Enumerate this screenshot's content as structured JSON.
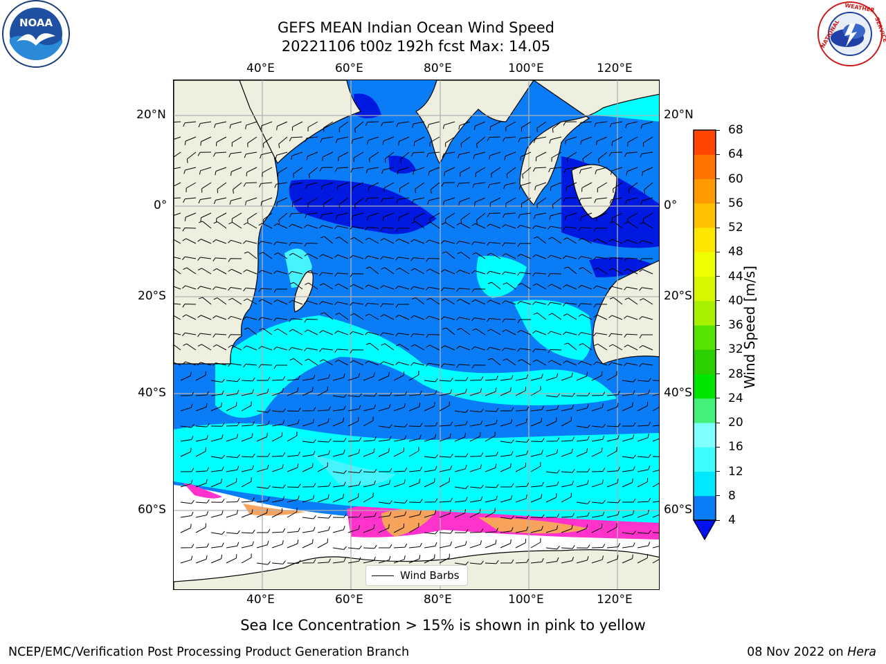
{
  "header": {
    "title_line1": "GEFS MEAN Indian Ocean Wind Speed",
    "title_line2": "20221106 t00z 192h fcst   Max: 14.05"
  },
  "logos": {
    "left": {
      "icon": "noaa-logo-icon",
      "text": "NOAA",
      "ring_text": "NATIONAL OCEANIC AND ATMOSPHERIC ADMINISTRATION • U.S. DEPARTMENT OF COMMERCE"
    },
    "right": {
      "icon": "nws-logo-icon",
      "ring_text": "NATIONAL WEATHER SERVICE"
    }
  },
  "map": {
    "lon_labels": [
      "40°E",
      "60°E",
      "80°E",
      "100°E",
      "120°E"
    ],
    "lat_labels": [
      "20°N",
      "0°",
      "20°S",
      "40°S",
      "60°S"
    ],
    "legend_label": "Wind Barbs",
    "colors": {
      "land": "#efefdf",
      "ocean_4_8": "#0a7cf5",
      "ocean_lt4": "#0019e0",
      "ocean_8_12": "#00ffff",
      "ocean_12_16": "#45f4ff",
      "ice_white": "#ffffff",
      "ice_pink": "#ff33cc",
      "ice_orange": "#f7a35c"
    }
  },
  "colorbar": {
    "label": "Wind Speed [m/s]",
    "ticks": [
      "4",
      "8",
      "12",
      "16",
      "20",
      "24",
      "28",
      "32",
      "36",
      "40",
      "44",
      "48",
      "52",
      "56",
      "60",
      "64",
      "68"
    ],
    "colors": [
      "#0a7cf5",
      "#00e8ff",
      "#3ffcff",
      "#80ffff",
      "#44f07a",
      "#00e500",
      "#2ccf00",
      "#55e300",
      "#a8f000",
      "#d7f700",
      "#eeff00",
      "#ffe600",
      "#ffc200",
      "#ff9a00",
      "#ff7300",
      "#ff4500",
      "#ff0f00"
    ],
    "under_color": "#0011f0"
  },
  "chart_data": {
    "type": "heatmap",
    "title": "GEFS MEAN Indian Ocean Wind Speed",
    "subtitle": "20221106 t00z 192h fcst   Max: 14.05",
    "value_label": "Wind Speed [m/s]",
    "max_value": 14.05,
    "color_scale": [
      4,
      8,
      12,
      16,
      20,
      24,
      28,
      32,
      36,
      40,
      44,
      48,
      52,
      56,
      60,
      64,
      68
    ],
    "lon_range": [
      20,
      130
    ],
    "lat_range": [
      -77,
      28
    ],
    "lon_ticks": [
      40,
      60,
      80,
      100,
      120
    ],
    "lat_ticks": [
      20,
      0,
      -20,
      -40,
      -60
    ],
    "grid": true,
    "legend": {
      "entries": [
        "Wind Barbs"
      ],
      "placement": "bottom-center"
    },
    "note": "Sea Ice Concentration > 15% is shown in pink to yellow"
  },
  "caption": "Sea Ice Concentration > 15% is shown in pink to yellow",
  "footer": {
    "left": "NCEP/EMC/Verification Post Processing Product Generation Branch",
    "date": "08 Nov 2022 on ",
    "machine": "Hera"
  }
}
